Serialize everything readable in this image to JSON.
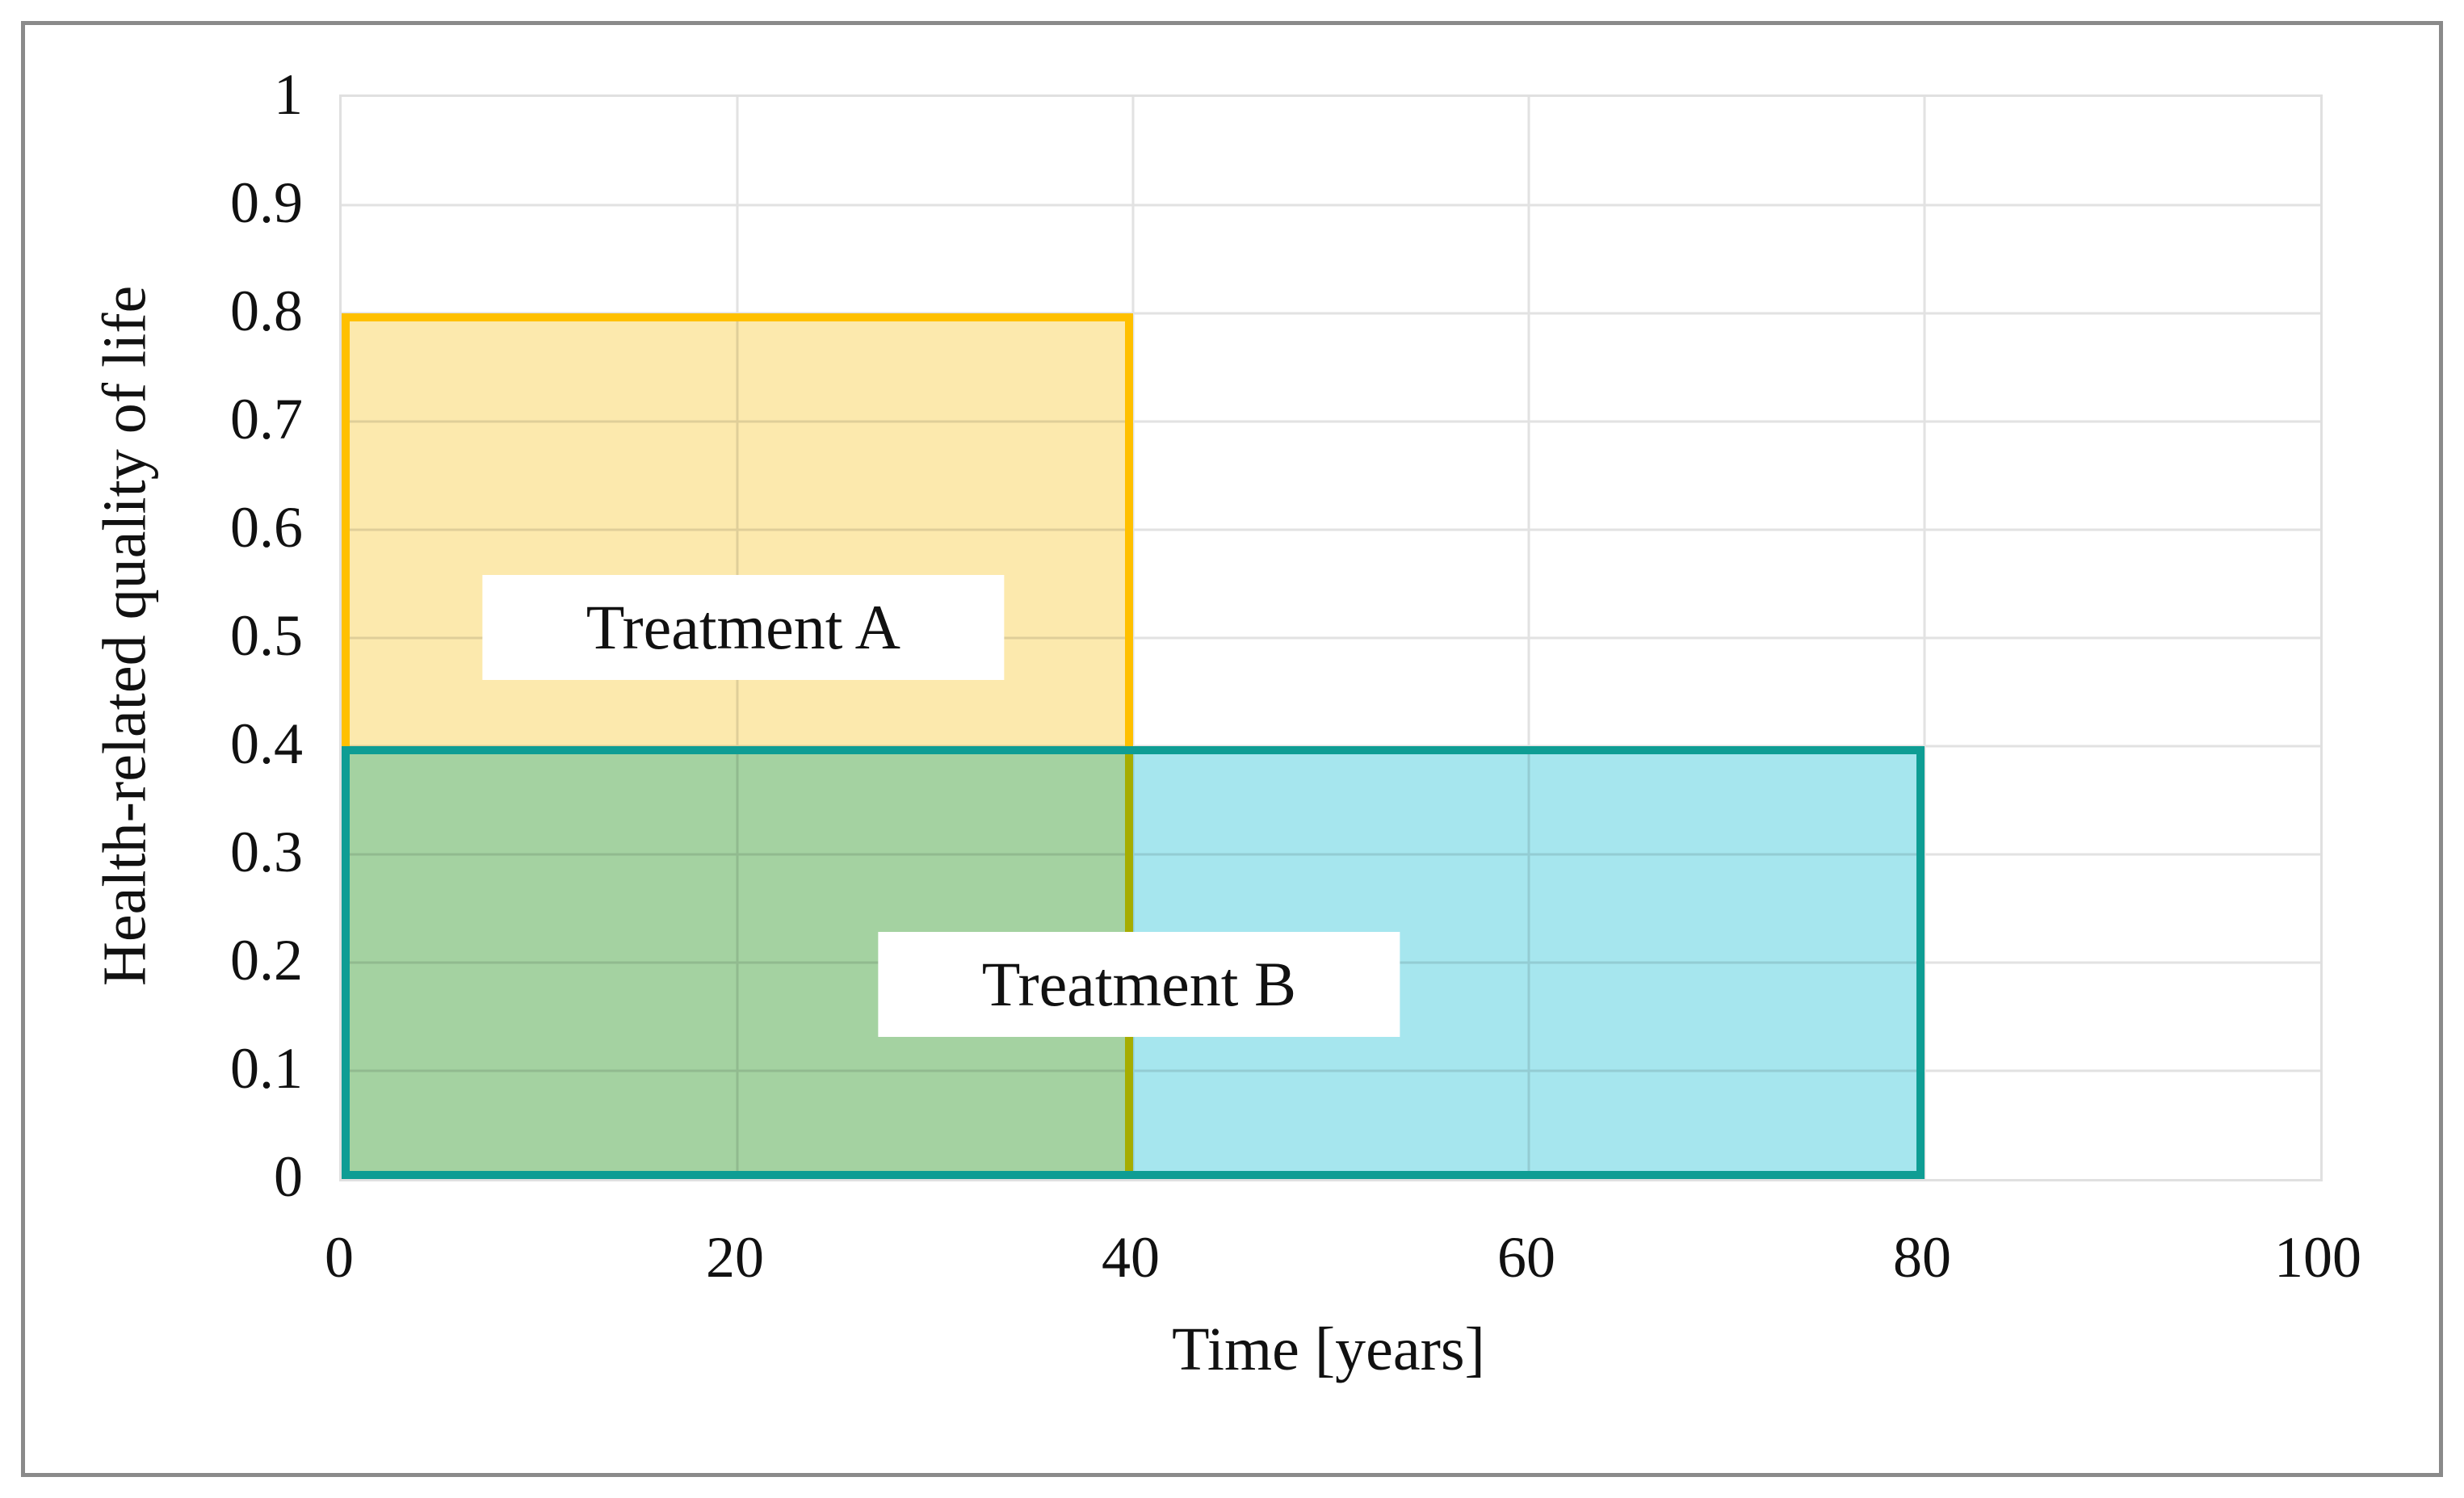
{
  "figure": {
    "background_color": "#ffffff",
    "border_color": "#8a8a8a"
  },
  "chart_data": {
    "type": "area",
    "title": "",
    "xlabel": "Time [years]",
    "ylabel": "Health-related quality of life",
    "xlim": [
      0,
      100
    ],
    "ylim": [
      0,
      1
    ],
    "grid": true,
    "gridline_color": "#e2e2e2",
    "legend": "none",
    "x_ticks": {
      "values": [
        0,
        20,
        40,
        60,
        80,
        100
      ],
      "labels": [
        "0",
        "20",
        "40",
        "60",
        "80",
        "100"
      ]
    },
    "y_ticks": {
      "values": [
        0,
        0.1,
        0.2,
        0.3,
        0.4,
        0.5,
        0.6,
        0.7,
        0.8,
        0.9,
        1
      ],
      "labels": [
        "0",
        "0.1",
        "0.2",
        "0.3",
        "0.4",
        "0.5",
        "0.6",
        "0.7",
        "0.8",
        "0.9",
        "1"
      ]
    },
    "series": [
      {
        "name": "Treatment A",
        "shape": "rect",
        "x_range": [
          0,
          40
        ],
        "y_range": [
          0,
          0.8
        ],
        "fill_color": "#fce9ad",
        "border_color": "#ffc000",
        "label": "Treatment A",
        "label_pos": {
          "x": 20.3,
          "y": 0.51
        }
      },
      {
        "name": "Treatment B",
        "shape": "rect",
        "x_range": [
          0,
          80
        ],
        "y_range": [
          0,
          0.4
        ],
        "fill_color": "#a6e6ee",
        "border_color": "#0e9d94",
        "label": "Treatment B",
        "label_pos": {
          "x": 40.3,
          "y": 0.18
        }
      }
    ],
    "overlap_color_observed": "#a8d8be",
    "overlap_border_color_observed": "#b8c653"
  }
}
